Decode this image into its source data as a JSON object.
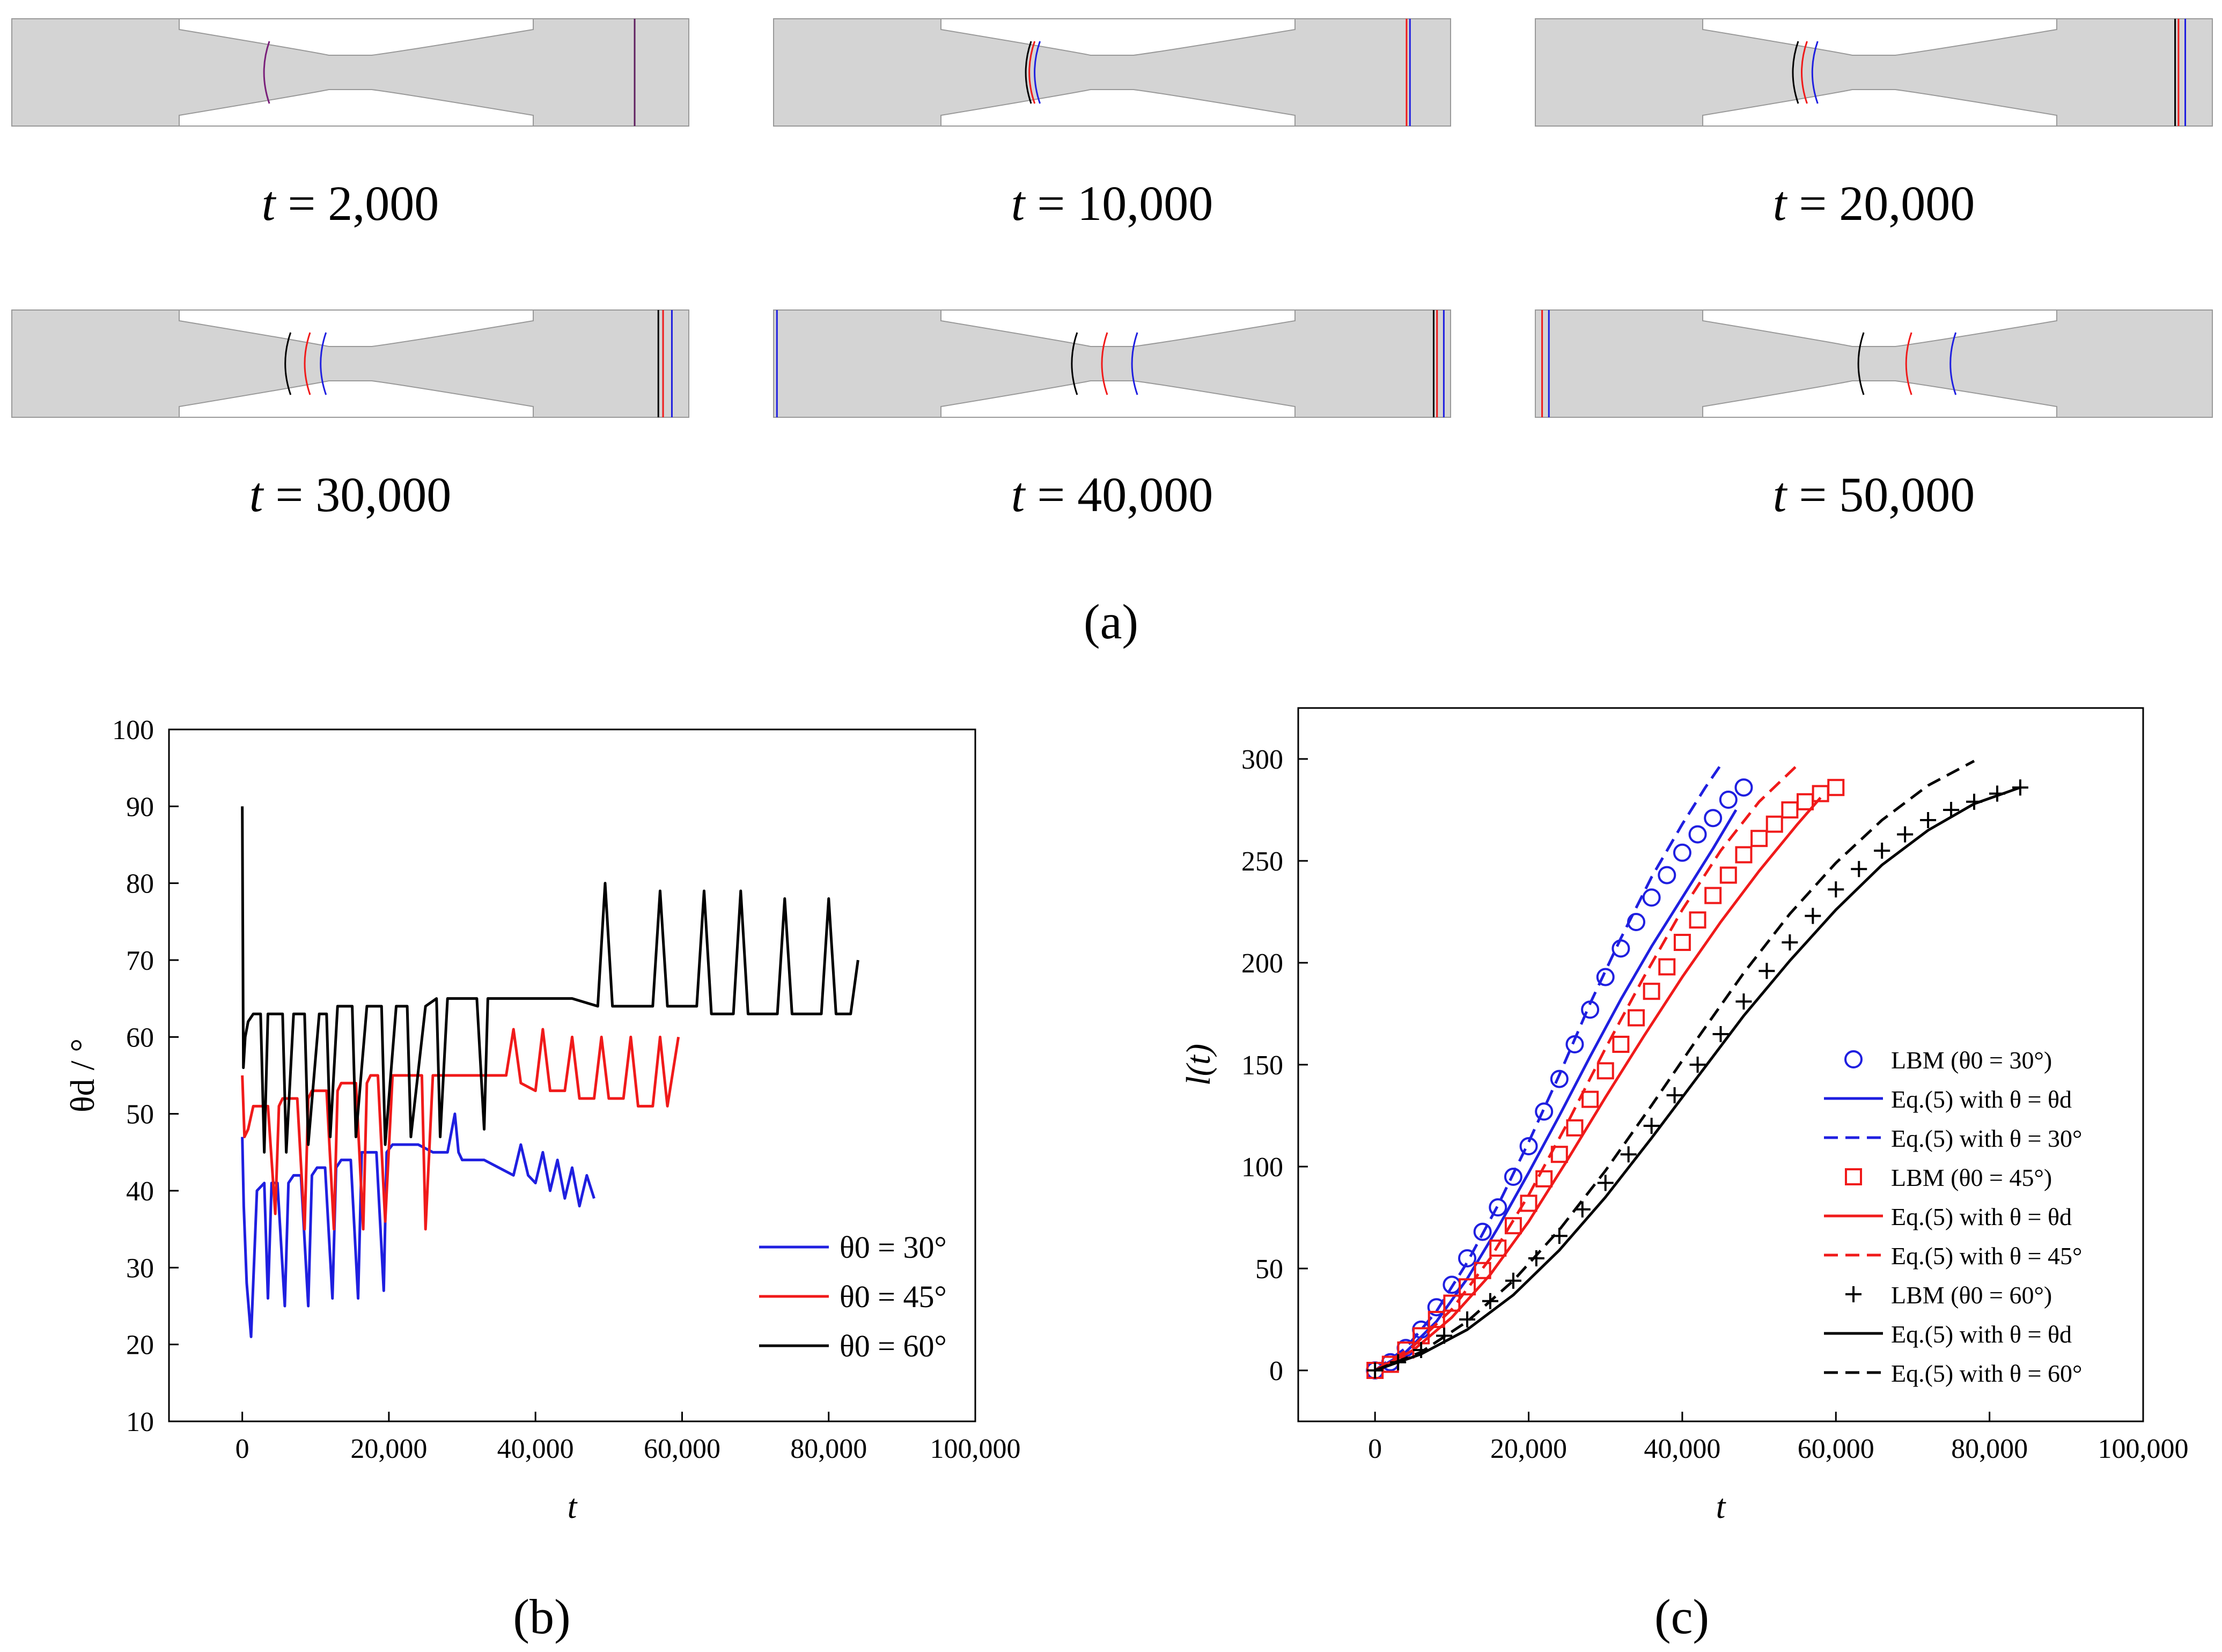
{
  "panel_a": {
    "label": "(a)",
    "snapshots": [
      {
        "time_label": "= 2,000",
        "fronts": [
          1
        ]
      },
      {
        "time_label": "= 10,000",
        "fronts": [
          1,
          2,
          3
        ]
      },
      {
        "time_label": "= 20,000",
        "fronts": [
          1,
          2,
          3
        ]
      },
      {
        "time_label": "= 30,000",
        "fronts": [
          1,
          2,
          3
        ]
      },
      {
        "time_label": "= 40,000",
        "fronts": [
          1,
          2,
          3
        ]
      },
      {
        "time_label": "= 50,000",
        "fronts": [
          1,
          2,
          3
        ]
      }
    ],
    "time_symbol": "t"
  },
  "panel_b": {
    "label": "(b)"
  },
  "panel_c": {
    "label": "(c)"
  },
  "colors": {
    "blue": "#1f1fe0",
    "red": "#f01a1a",
    "black": "#000000",
    "grey": "#d4d4d4"
  },
  "chart_data": [
    {
      "type": "line",
      "id": "b",
      "xlabel": "t",
      "ylabel": "θd / °",
      "xlim": [
        -10000,
        100000
      ],
      "ylim": [
        10,
        100
      ],
      "xticks": [
        0,
        20000,
        40000,
        60000,
        80000,
        100000
      ],
      "xtick_labels": [
        "0",
        "20,000",
        "40,000",
        "60,000",
        "80,000",
        "100,000"
      ],
      "yticks": [
        10,
        20,
        30,
        40,
        50,
        60,
        70,
        80,
        90,
        100
      ],
      "ytick_labels": [
        "10",
        "20",
        "30",
        "40",
        "50",
        "60",
        "70",
        "80",
        "90",
        "100"
      ],
      "legend_position": "bottom-right",
      "series": [
        {
          "name": "θ0 = 30°",
          "color": "#1f1fe0",
          "x": [
            0,
            200,
            600,
            1200,
            2000,
            3000,
            3500,
            4000,
            4800,
            5800,
            6300,
            7000,
            8000,
            9000,
            9500,
            10200,
            11300,
            12300,
            12800,
            13500,
            14800,
            15800,
            16300,
            17000,
            18300,
            19300,
            19700,
            20500,
            22000,
            24000,
            26000,
            28000,
            29000,
            29500,
            30000,
            31000,
            33000,
            35000,
            37000,
            38000,
            39000,
            40000,
            41000,
            42000,
            43000,
            44000,
            45000,
            46000,
            47000,
            48000
          ],
          "y": [
            47,
            38,
            28,
            21,
            40,
            41,
            26,
            41,
            41,
            25,
            41,
            42,
            42,
            25,
            42,
            43,
            43,
            26,
            43,
            44,
            44,
            26,
            45,
            45,
            45,
            27,
            45,
            46,
            46,
            46,
            45,
            45,
            50,
            45,
            44,
            44,
            44,
            43,
            42,
            46,
            42,
            41,
            45,
            40,
            44,
            39,
            43,
            38,
            42,
            39
          ]
        },
        {
          "name": "θ0 = 45°",
          "color": "#f01a1a",
          "x": [
            0,
            300,
            800,
            1500,
            2500,
            3500,
            4500,
            5000,
            5500,
            6500,
            7500,
            8500,
            9000,
            9500,
            10500,
            11500,
            12500,
            13000,
            13500,
            14500,
            15500,
            16500,
            17000,
            17500,
            18500,
            19500,
            20500,
            21500,
            23000,
            24500,
            25000,
            26000,
            28000,
            30000,
            32000,
            34000,
            36000,
            37000,
            38000,
            40000,
            41000,
            42000,
            44000,
            45000,
            46000,
            48000,
            49000,
            50000,
            52000,
            53000,
            54000,
            56000,
            57000,
            58000,
            59500
          ],
          "y": [
            55,
            47,
            48,
            51,
            51,
            51,
            37,
            51,
            52,
            52,
            52,
            35,
            52,
            53,
            53,
            53,
            35,
            53,
            54,
            54,
            54,
            35,
            54,
            55,
            55,
            36,
            55,
            55,
            55,
            55,
            35,
            55,
            55,
            55,
            55,
            55,
            55,
            61,
            54,
            53,
            61,
            53,
            53,
            60,
            52,
            52,
            60,
            52,
            52,
            60,
            51,
            51,
            60,
            51,
            60
          ]
        },
        {
          "name": "θ0 = 60°",
          "color": "#000000",
          "x": [
            0,
            150,
            400,
            800,
            1500,
            2500,
            3000,
            3500,
            4500,
            5500,
            6000,
            7000,
            8000,
            8500,
            9000,
            10500,
            11500,
            12000,
            13000,
            14500,
            15000,
            15500,
            17000,
            18500,
            19000,
            19500,
            21000,
            22000,
            22500,
            23000,
            25000,
            26500,
            27000,
            28000,
            30000,
            32000,
            33000,
            33500,
            35000,
            40000,
            45000,
            48500,
            49500,
            50500,
            54000,
            56000,
            57000,
            58000,
            60000,
            62000,
            63000,
            64000,
            67000,
            68000,
            69000,
            71000,
            73000,
            74000,
            75000,
            77000,
            79000,
            80000,
            81000,
            83000,
            84000
          ],
          "y": [
            90,
            56,
            60,
            62,
            63,
            63,
            45,
            63,
            63,
            63,
            45,
            63,
            63,
            63,
            46,
            63,
            63,
            47,
            64,
            64,
            64,
            47,
            64,
            64,
            64,
            46,
            64,
            64,
            64,
            47,
            64,
            65,
            47,
            65,
            65,
            65,
            48,
            65,
            65,
            65,
            65,
            64,
            80,
            64,
            64,
            64,
            79,
            64,
            64,
            64,
            79,
            63,
            63,
            79,
            63,
            63,
            63,
            78,
            63,
            63,
            63,
            78,
            63,
            63,
            70
          ]
        }
      ]
    },
    {
      "type": "line",
      "id": "c",
      "xlabel": "t",
      "ylabel": "l(t)",
      "xlim": [
        -10000,
        100000
      ],
      "ylim": [
        -25,
        325
      ],
      "xticks": [
        0,
        20000,
        40000,
        60000,
        80000,
        100000
      ],
      "xtick_labels": [
        "0",
        "20,000",
        "40,000",
        "60,000",
        "80,000",
        "100,000"
      ],
      "yticks": [
        0,
        50,
        100,
        150,
        200,
        250,
        300
      ],
      "ytick_labels": [
        "0",
        "50",
        "100",
        "150",
        "200",
        "250",
        "300"
      ],
      "legend_position": "right",
      "series": [
        {
          "name": "LBM (θ0 = 30°)",
          "style": "circle",
          "color": "#1f1fe0",
          "x": [
            0,
            2000,
            4000,
            6000,
            8000,
            10000,
            12000,
            14000,
            16000,
            18000,
            20000,
            22000,
            24000,
            26000,
            28000,
            30000,
            32000,
            34000,
            36000,
            38000,
            40000,
            42000,
            44000,
            46000,
            48000
          ],
          "y": [
            0,
            4,
            11,
            20,
            31,
            42,
            55,
            68,
            80,
            95,
            110,
            127,
            143,
            160,
            177,
            193,
            207,
            220,
            232,
            243,
            254,
            263,
            271,
            280,
            286
          ]
        },
        {
          "name": "Eq.(5) with θ = θd (30°)",
          "style": "solid",
          "color": "#1f1fe0",
          "x": [
            0,
            4000,
            8000,
            12000,
            16000,
            20000,
            24000,
            28000,
            32000,
            36000,
            40000,
            44000,
            47000
          ],
          "y": [
            0,
            9,
            24,
            45,
            70,
            97,
            125,
            154,
            182,
            208,
            232,
            256,
            275
          ]
        },
        {
          "name": "Eq.(5) with θ = 30°",
          "style": "dashed",
          "color": "#1f1fe0",
          "x": [
            0,
            4000,
            8000,
            12000,
            16000,
            20000,
            24000,
            28000,
            32000,
            36000,
            40000,
            43000,
            45000
          ],
          "y": [
            0,
            11,
            29,
            53,
            81,
            112,
            145,
            180,
            212,
            242,
            268,
            286,
            297
          ]
        },
        {
          "name": "LBM (θ0 = 45°)",
          "style": "square",
          "color": "#f01a1a",
          "x": [
            0,
            2000,
            4000,
            6000,
            8000,
            10000,
            12000,
            14000,
            16000,
            18000,
            20000,
            22000,
            24000,
            26000,
            28000,
            30000,
            32000,
            34000,
            36000,
            38000,
            40000,
            42000,
            44000,
            46000,
            48000,
            50000,
            52000,
            54000,
            56000,
            58000,
            60000
          ],
          "y": [
            0,
            3,
            10,
            17,
            25,
            33,
            41,
            49,
            60,
            71,
            82,
            94,
            106,
            119,
            133,
            147,
            160,
            173,
            186,
            198,
            210,
            221,
            233,
            243,
            253,
            261,
            268,
            275,
            279,
            283,
            286
          ]
        },
        {
          "name": "Eq.(5) with θ = θd (45°)",
          "style": "solid",
          "color": "#f01a1a",
          "x": [
            0,
            5000,
            10000,
            15000,
            20000,
            25000,
            30000,
            35000,
            40000,
            45000,
            50000,
            55000,
            58000
          ],
          "y": [
            0,
            10,
            26,
            47,
            73,
            103,
            134,
            164,
            193,
            220,
            245,
            268,
            281
          ]
        },
        {
          "name": "Eq.(5) with θ = 45°",
          "style": "dashed",
          "color": "#f01a1a",
          "x": [
            0,
            5000,
            10000,
            15000,
            20000,
            25000,
            30000,
            35000,
            40000,
            45000,
            50000,
            55000
          ],
          "y": [
            0,
            12,
            30,
            55,
            86,
            121,
            158,
            193,
            226,
            255,
            279,
            297
          ]
        },
        {
          "name": "LBM (θ0 = 60°)",
          "style": "plus",
          "color": "#000000",
          "x": [
            0,
            3000,
            6000,
            9000,
            12000,
            15000,
            18000,
            21000,
            24000,
            27000,
            30000,
            33000,
            36000,
            39000,
            42000,
            45000,
            48000,
            51000,
            54000,
            57000,
            60000,
            63000,
            66000,
            69000,
            72000,
            75000,
            78000,
            81000,
            84000
          ],
          "y": [
            0,
            4,
            10,
            17,
            25,
            34,
            44,
            55,
            66,
            79,
            92,
            106,
            120,
            135,
            150,
            165,
            181,
            196,
            210,
            223,
            236,
            246,
            255,
            263,
            270,
            275,
            279,
            283,
            286
          ]
        },
        {
          "name": "Eq.(5) with θ = θd (60°)",
          "style": "solid",
          "color": "#000000",
          "x": [
            0,
            6000,
            12000,
            18000,
            24000,
            30000,
            36000,
            42000,
            48000,
            54000,
            60000,
            66000,
            72000,
            78000,
            84000
          ],
          "y": [
            0,
            8,
            20,
            37,
            59,
            85,
            114,
            144,
            174,
            201,
            226,
            248,
            265,
            278,
            286
          ]
        },
        {
          "name": "Eq.(5) with θ = 60°",
          "style": "dashed",
          "color": "#000000",
          "x": [
            0,
            6000,
            12000,
            18000,
            24000,
            30000,
            36000,
            42000,
            48000,
            54000,
            60000,
            66000,
            72000,
            78000
          ],
          "y": [
            0,
            9,
            24,
            44,
            69,
            98,
            130,
            163,
            195,
            224,
            249,
            270,
            287,
            299
          ]
        }
      ],
      "legend": [
        {
          "marker": "circle",
          "color": "#1f1fe0",
          "text": "LBM (θ0 = 30°)"
        },
        {
          "marker": "solid",
          "color": "#1f1fe0",
          "text": "Eq.(5) with θ = θd"
        },
        {
          "marker": "dashed",
          "color": "#1f1fe0",
          "text": "Eq.(5) with θ = 30°"
        },
        {
          "marker": "square",
          "color": "#f01a1a",
          "text": "LBM (θ0 = 45°)"
        },
        {
          "marker": "solid",
          "color": "#f01a1a",
          "text": "Eq.(5) with θ = θd"
        },
        {
          "marker": "dashed",
          "color": "#f01a1a",
          "text": "Eq.(5) with θ = 45°"
        },
        {
          "marker": "plus",
          "color": "#000000",
          "text": "LBM (θ0 = 60°)"
        },
        {
          "marker": "solid",
          "color": "#000000",
          "text": "Eq.(5) with θ = θd"
        },
        {
          "marker": "dashed",
          "color": "#000000",
          "text": "Eq.(5) with θ = 60°"
        }
      ]
    }
  ]
}
